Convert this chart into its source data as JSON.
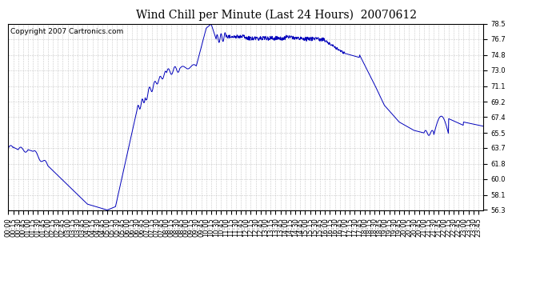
{
  "title": "Wind Chill per Minute (Last 24 Hours)  20070612",
  "copyright": "Copyright 2007 Cartronics.com",
  "line_color": "#0000bb",
  "bg_color": "#ffffff",
  "plot_bg_color": "#ffffff",
  "grid_color": "#bbbbbb",
  "ylim": [
    56.3,
    78.5
  ],
  "yticks": [
    56.3,
    58.1,
    60.0,
    61.8,
    63.7,
    65.5,
    67.4,
    69.2,
    71.1,
    73.0,
    74.8,
    76.7,
    78.5
  ],
  "title_fontsize": 10,
  "tick_fontsize": 6,
  "copyright_fontsize": 6.5
}
